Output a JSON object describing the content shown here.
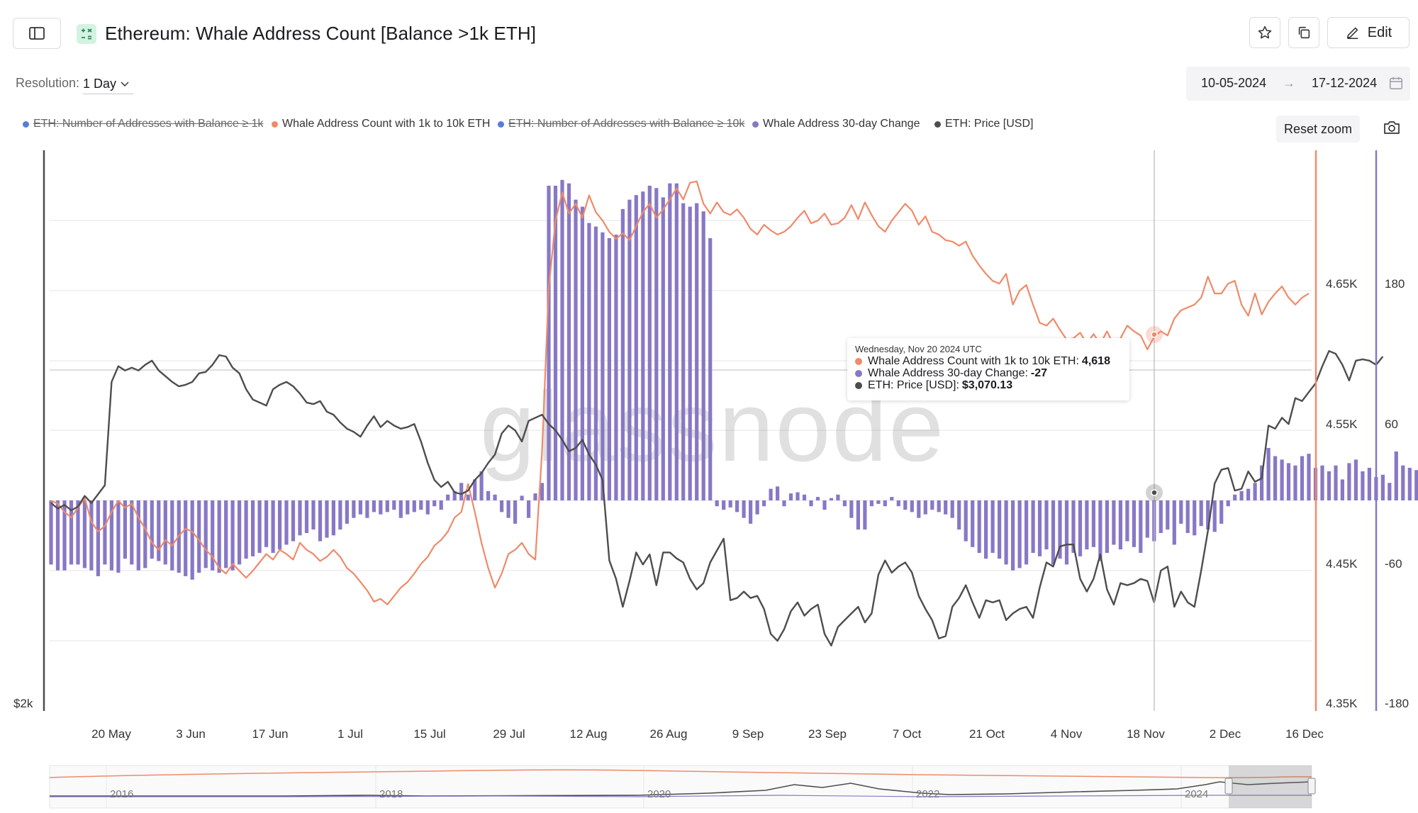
{
  "header": {
    "title": "Ethereum: Whale Address Count [Balance >1k ETH]",
    "edit_label": "Edit"
  },
  "controls": {
    "resolution_label": "Resolution:",
    "resolution_value": "1 Day",
    "date_from": "10-05-2024",
    "date_arrow": "→",
    "date_to": "17-12-2024",
    "reset_zoom": "Reset zoom"
  },
  "legend": [
    {
      "label": "ETH: Number of Addresses with Balance ≥ 1k",
      "color": "#5b7bd8",
      "disabled": true
    },
    {
      "label": "Whale Address Count with 1k to 10k ETH",
      "color": "#ef8a6a",
      "disabled": false
    },
    {
      "label": "ETH: Number of Addresses with Balance ≥ 10k",
      "color": "#5b7bd8",
      "disabled": true
    },
    {
      "label": "Whale Address 30-day Change",
      "color": "#8778c6",
      "disabled": false
    },
    {
      "label": "ETH: Price [USD]",
      "color": "#4d4d4d",
      "disabled": false
    }
  ],
  "watermark": "glassnode",
  "tooltip": {
    "date": "Wednesday, Nov 20 2024 UTC",
    "rows": [
      {
        "label": "Whale Address Count with 1k to 10k ETH:",
        "value": "4,618",
        "color": "#ef8a6a"
      },
      {
        "label": "Whale Address 30-day Change:",
        "value": "-27",
        "color": "#8778c6"
      },
      {
        "label": "ETH: Price [USD]:",
        "value": "$3,070.13",
        "color": "#4d4d4d"
      }
    ]
  },
  "chart_data": {
    "type": "line",
    "x_ticks": [
      "20 May",
      "3 Jun",
      "17 Jun",
      "1 Jul",
      "15 Jul",
      "29 Jul",
      "12 Aug",
      "26 Aug",
      "9 Sep",
      "23 Sep",
      "7 Oct",
      "21 Oct",
      "4 Nov",
      "18 Nov",
      "2 Dec",
      "16 Dec"
    ],
    "left_axis": {
      "ticks": [
        "$2k"
      ],
      "scale": "log"
    },
    "right_axis_count": {
      "ticks": [
        "4.65K",
        "4.55K",
        "4.45K",
        "4.35K"
      ],
      "range": [
        4350,
        4750
      ]
    },
    "right_axis_change": {
      "ticks": [
        "180",
        "60",
        "-60",
        "-180"
      ],
      "range": [
        -180,
        240
      ]
    },
    "navigator_ticks": [
      "2016",
      "2018",
      "2020",
      "2022",
      "2024"
    ],
    "series": [
      {
        "name": "Whale Address Count with 1k to 10k ETH",
        "type": "line",
        "axis": "count",
        "color": "#ef8a6a",
        "values": [
          4500,
          4498,
          4492,
          4488,
          4495,
          4502,
          4485,
          4478,
          4482,
          4492,
          4500,
          4495,
          4498,
          4488,
          4480,
          4470,
          4465,
          4472,
          4468,
          4475,
          4480,
          4478,
          4472,
          4465,
          4460,
          4452,
          4448,
          4455,
          4450,
          4445,
          4450,
          4456,
          4462,
          4458,
          4465,
          4462,
          4458,
          4470,
          4465,
          4462,
          4457,
          4460,
          4465,
          4460,
          4452,
          4448,
          4442,
          4436,
          4428,
          4430,
          4426,
          4432,
          4438,
          4442,
          4448,
          4455,
          4460,
          4468,
          4472,
          4478,
          4488,
          4492,
          4512,
          4492,
          4470,
          4452,
          4438,
          4448,
          4462,
          4465,
          4470,
          4462,
          4458,
          4535,
          4652,
          4700,
          4720,
          4705,
          4712,
          4702,
          4718,
          4706,
          4700,
          4692,
          4687,
          4691,
          4686,
          4696,
          4706,
          4712,
          4702,
          4708,
          4715,
          4723,
          4715,
          4727,
          4728,
          4712,
          4705,
          4713,
          4706,
          4704,
          4708,
          4702,
          4694,
          4690,
          4697,
          4693,
          4690,
          4692,
          4696,
          4702,
          4707,
          4698,
          4700,
          4705,
          4697,
          4698,
          4702,
          4711,
          4701,
          4713,
          4704,
          4696,
          4692,
          4700,
          4706,
          4712,
          4707,
          4697,
          4703,
          4692,
          4690,
          4686,
          4685,
          4682,
          4685,
          4675,
          4668,
          4662,
          4657,
          4655,
          4662,
          4640,
          4650,
          4654,
          4640,
          4627,
          4625,
          4630,
          4622,
          4615,
          4616,
          4620,
          4612,
          4619,
          4612,
          4621,
          4611,
          4616,
          4625,
          4621,
          4618,
          4608,
          4617,
          4621,
          4618,
          4630,
          4636,
          4638,
          4640,
          4645,
          4660,
          4648,
          4648,
          4655,
          4657,
          4640,
          4632,
          4648,
          4633,
          4642,
          4648,
          4653,
          4645,
          4640,
          4645,
          4648
        ]
      },
      {
        "name": "Whale Address 30-day Change",
        "type": "bar",
        "axis": "change",
        "color": "#8778c6",
        "values": [
          -55,
          -60,
          -60,
          -55,
          -55,
          -58,
          -60,
          -65,
          -55,
          -60,
          -62,
          -50,
          -55,
          -60,
          -58,
          -50,
          -52,
          -55,
          -60,
          -62,
          -65,
          -68,
          -62,
          -58,
          -60,
          -62,
          -58,
          -60,
          -55,
          -50,
          -48,
          -45,
          -40,
          -45,
          -42,
          -38,
          -35,
          -30,
          -28,
          -25,
          -35,
          -32,
          -30,
          -25,
          -20,
          -15,
          -12,
          -15,
          -10,
          -12,
          -10,
          -8,
          -15,
          -12,
          -10,
          -8,
          -12,
          -5,
          -8,
          5,
          8,
          15,
          5,
          18,
          25,
          8,
          5,
          -10,
          -15,
          -20,
          4,
          -15,
          6,
          15,
          270,
          270,
          275,
          272,
          258,
          252,
          238,
          235,
          230,
          225,
          228,
          250,
          258,
          262,
          265,
          270,
          268,
          260,
          272,
          272,
          255,
          252,
          255,
          248,
          225,
          -5,
          -8,
          -6,
          -10,
          -15,
          -20,
          -12,
          -5,
          10,
          12,
          -5,
          6,
          7,
          5,
          -5,
          3,
          -8,
          2,
          5,
          -5,
          -15,
          -25,
          -25,
          -5,
          -3,
          -5,
          3,
          -5,
          -8,
          -10,
          -15,
          -12,
          -8,
          -10,
          -12,
          -15,
          -25,
          -35,
          -40,
          -45,
          -50,
          -45,
          -50,
          -55,
          -60,
          -58,
          -55,
          -45,
          -48,
          -42,
          -55,
          -50,
          -55,
          -45,
          -48,
          -42,
          -40,
          -52,
          -45,
          -38,
          -42,
          -35,
          -40,
          -45,
          -32,
          -35,
          -28,
          -25,
          -38,
          -20,
          -28,
          -30,
          -22,
          -25,
          -27,
          -20,
          -5,
          5,
          8,
          10,
          15,
          30,
          45,
          38,
          35,
          32,
          30,
          38,
          40,
          28,
          30,
          25,
          30,
          18,
          32,
          35,
          25,
          28,
          20,
          22,
          15,
          42,
          30,
          28,
          26
        ]
      },
      {
        "name": "ETH: Price [USD]",
        "type": "line",
        "axis": "price",
        "color": "#4d4d4d",
        "values": [
          2950,
          2920,
          2940,
          2910,
          2930,
          2990,
          2950,
          3000,
          3050,
          3700,
          3810,
          3780,
          3800,
          3780,
          3820,
          3850,
          3780,
          3740,
          3700,
          3670,
          3680,
          3700,
          3760,
          3770,
          3820,
          3890,
          3880,
          3800,
          3760,
          3650,
          3580,
          3560,
          3540,
          3650,
          3680,
          3700,
          3670,
          3620,
          3560,
          3550,
          3570,
          3500,
          3480,
          3430,
          3390,
          3370,
          3340,
          3410,
          3470,
          3400,
          3440,
          3410,
          3390,
          3400,
          3420,
          3310,
          3180,
          3080,
          3040,
          3070,
          3010,
          3000,
          3020,
          3080,
          3120,
          3180,
          3230,
          3360,
          3410,
          3380,
          3310,
          3440,
          3460,
          3480,
          3420,
          3380,
          3320,
          3250,
          3270,
          3320,
          3230,
          3170,
          3080,
          2650,
          2560,
          2430,
          2550,
          2690,
          2630,
          2680,
          2530,
          2690,
          2690,
          2660,
          2640,
          2560,
          2510,
          2540,
          2640,
          2700,
          2760,
          2460,
          2470,
          2500,
          2470,
          2480,
          2420,
          2310,
          2280,
          2330,
          2410,
          2450,
          2390,
          2420,
          2440,
          2310,
          2260,
          2340,
          2370,
          2400,
          2430,
          2360,
          2400,
          2580,
          2650,
          2590,
          2620,
          2640,
          2590,
          2480,
          2420,
          2370,
          2290,
          2300,
          2430,
          2470,
          2530,
          2450,
          2380,
          2460,
          2450,
          2460,
          2370,
          2400,
          2420,
          2430,
          2380,
          2520,
          2640,
          2620,
          2720,
          2730,
          2730,
          2560,
          2500,
          2560,
          2680,
          2510,
          2440,
          2540,
          2530,
          2540,
          2560,
          2550,
          2450,
          2600,
          2620,
          2430,
          2500,
          2450,
          2430,
          2600,
          2800,
          3060,
          3140,
          3150,
          3020,
          3030,
          3130,
          3070,
          3090,
          3410,
          3390,
          3460,
          3420,
          3590,
          3570,
          3630,
          3690,
          3810,
          3920,
          3900,
          3820,
          3710,
          3850,
          3860,
          3850,
          3820,
          3880
        ]
      }
    ],
    "highlight_date": "Nov 20 2024"
  }
}
